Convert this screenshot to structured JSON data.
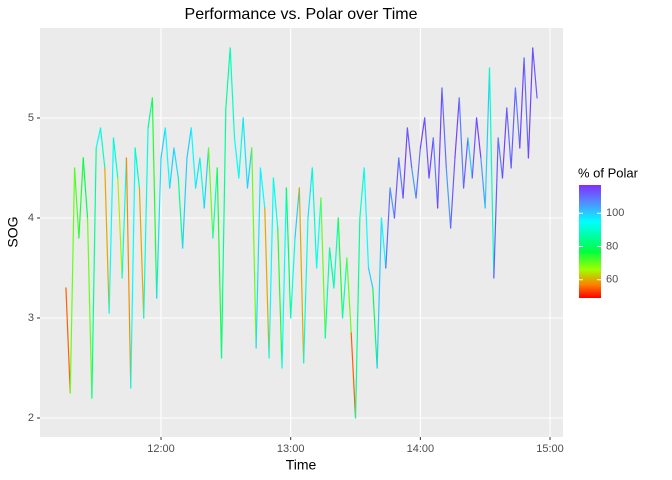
{
  "chart_data": {
    "type": "line",
    "title": "Performance vs. Polar over Time",
    "x_label": "Time",
    "y_label": "SOG",
    "color_label": "% of Polar",
    "x": [
      "11:16",
      "11:18",
      "11:20",
      "11:22",
      "11:24",
      "11:26",
      "11:28",
      "11:30",
      "11:32",
      "11:34",
      "11:36",
      "11:38",
      "11:40",
      "11:42",
      "11:44",
      "11:46",
      "11:48",
      "11:50",
      "11:52",
      "11:54",
      "11:56",
      "11:58",
      "12:00",
      "12:02",
      "12:04",
      "12:06",
      "12:08",
      "12:10",
      "12:12",
      "12:14",
      "12:16",
      "12:18",
      "12:20",
      "12:22",
      "12:24",
      "12:26",
      "12:28",
      "12:30",
      "12:32",
      "12:34",
      "12:36",
      "12:38",
      "12:40",
      "12:42",
      "12:44",
      "12:46",
      "12:48",
      "12:50",
      "12:52",
      "12:54",
      "12:56",
      "12:58",
      "13:00",
      "13:02",
      "13:04",
      "13:06",
      "13:08",
      "13:10",
      "13:12",
      "13:14",
      "13:16",
      "13:18",
      "13:20",
      "13:22",
      "13:24",
      "13:26",
      "13:28",
      "13:30",
      "13:32",
      "13:34",
      "13:36",
      "13:38",
      "13:40",
      "13:42",
      "13:44",
      "13:46",
      "13:48",
      "13:50",
      "13:52",
      "13:54",
      "13:56",
      "13:58",
      "14:00",
      "14:02",
      "14:04",
      "14:06",
      "14:08",
      "14:10",
      "14:12",
      "14:14",
      "14:16",
      "14:18",
      "14:20",
      "14:22",
      "14:24",
      "14:26",
      "14:28",
      "14:30",
      "14:32",
      "14:34",
      "14:36",
      "14:38",
      "14:40",
      "14:42",
      "14:44",
      "14:46",
      "14:48",
      "14:50",
      "14:52",
      "14:54"
    ],
    "values": [
      3.3,
      2.25,
      4.5,
      3.8,
      4.6,
      4.0,
      2.2,
      4.7,
      4.9,
      4.5,
      3.05,
      4.8,
      4.4,
      3.4,
      4.6,
      2.3,
      4.7,
      4.3,
      3.0,
      4.9,
      5.2,
      3.2,
      4.6,
      4.9,
      4.3,
      4.7,
      4.4,
      3.7,
      4.6,
      4.9,
      4.3,
      4.6,
      4.1,
      4.7,
      3.8,
      4.5,
      2.6,
      5.1,
      5.7,
      4.8,
      4.4,
      5.0,
      4.3,
      4.7,
      2.7,
      4.5,
      4.1,
      2.6,
      4.4,
      3.9,
      2.5,
      4.3,
      3.0,
      3.8,
      4.3,
      2.55,
      4.0,
      4.5,
      3.5,
      4.2,
      2.8,
      3.7,
      3.3,
      4.0,
      3.0,
      3.6,
      2.85,
      2.0,
      4.0,
      4.5,
      3.5,
      3.3,
      2.5,
      4.0,
      3.5,
      4.3,
      4.0,
      4.6,
      4.2,
      4.9,
      4.5,
      4.2,
      4.7,
      5.0,
      4.4,
      4.8,
      4.1,
      5.3,
      4.5,
      3.9,
      4.6,
      5.2,
      4.3,
      4.8,
      4.4,
      5.0,
      4.6,
      4.1,
      5.5,
      3.4,
      4.8,
      4.4,
      5.1,
      4.5,
      5.3,
      4.7,
      5.6,
      4.6,
      5.7,
      5.2
    ],
    "color_values": [
      60,
      55,
      70,
      72,
      75,
      78,
      70,
      85,
      95,
      90,
      60,
      95,
      90,
      65,
      92,
      58,
      95,
      88,
      60,
      92,
      85,
      75,
      98,
      100,
      95,
      100,
      98,
      85,
      100,
      100,
      95,
      98,
      92,
      100,
      70,
      90,
      75,
      85,
      85,
      90,
      95,
      92,
      98,
      100,
      70,
      98,
      95,
      60,
      95,
      92,
      75,
      95,
      80,
      92,
      100,
      60,
      92,
      98,
      90,
      95,
      70,
      88,
      85,
      90,
      75,
      90,
      70,
      55,
      85,
      90,
      95,
      100,
      80,
      100,
      95,
      110,
      105,
      112,
      108,
      115,
      112,
      105,
      110,
      115,
      112,
      115,
      108,
      115,
      110,
      105,
      112,
      115,
      108,
      112,
      100,
      112,
      115,
      105,
      100,
      90,
      112,
      108,
      115,
      110,
      112,
      108,
      115,
      110,
      115,
      112
    ],
    "clim": [
      49,
      117
    ],
    "cticks": [
      60,
      80,
      100
    ],
    "color_stops": [
      {
        "value": 49,
        "color": "#ff0000"
      },
      {
        "value": 57,
        "color": "#ff8000"
      },
      {
        "value": 66,
        "color": "#a0ff00"
      },
      {
        "value": 77,
        "color": "#00ff40"
      },
      {
        "value": 95,
        "color": "#00ffff"
      },
      {
        "value": 106,
        "color": "#5090ff"
      },
      {
        "value": 117,
        "color": "#7f2fff"
      }
    ],
    "xlim": [
      "11:04",
      "15:06"
    ],
    "xticks": [
      "12:00",
      "13:00",
      "14:00",
      "15:00"
    ],
    "ylim": [
      1.81,
      5.9
    ],
    "yticks": [
      2,
      3,
      4,
      5
    ],
    "grid": true
  }
}
